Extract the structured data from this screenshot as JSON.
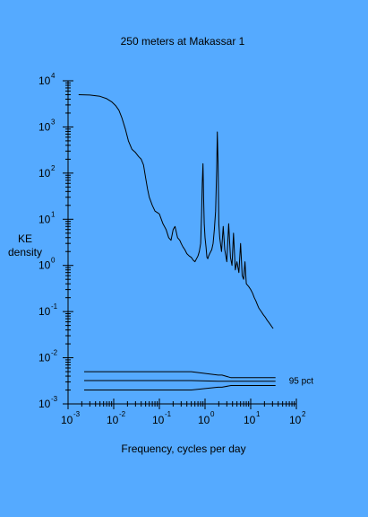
{
  "chart_data": {
    "type": "line",
    "title": "250 meters at Makassar 1",
    "xlabel": "Frequency, cycles per day",
    "ylabel": [
      "KE",
      "density"
    ],
    "x_scale": "log",
    "y_scale": "log",
    "xlim": [
      0.001,
      100
    ],
    "ylim": [
      0.001,
      10000
    ],
    "x_ticks": [
      {
        "base": "10",
        "exp": "-3",
        "value": 0.001
      },
      {
        "base": "10",
        "exp": "-2",
        "value": 0.01
      },
      {
        "base": "10",
        "exp": "-1",
        "value": 0.1
      },
      {
        "base": "10",
        "exp": "0",
        "value": 1
      },
      {
        "base": "10",
        "exp": "1",
        "value": 10
      },
      {
        "base": "10",
        "exp": "2",
        "value": 100
      }
    ],
    "y_ticks": [
      {
        "base": "10",
        "exp": "4",
        "value": 10000
      },
      {
        "base": "10",
        "exp": "3",
        "value": 1000
      },
      {
        "base": "10",
        "exp": "2",
        "value": 100
      },
      {
        "base": "10",
        "exp": "1",
        "value": 10
      },
      {
        "base": "10",
        "exp": "0",
        "value": 1
      },
      {
        "base": "10",
        "exp": "-1",
        "value": 0.1
      },
      {
        "base": "10",
        "exp": "-2",
        "value": 0.01
      },
      {
        "base": "10",
        "exp": "-3",
        "value": 0.001
      }
    ],
    "series": [
      {
        "x": [
          0.0017,
          0.003,
          0.005,
          0.007,
          0.009,
          0.011,
          0.013,
          0.015,
          0.018,
          0.021,
          0.025,
          0.03,
          0.035,
          0.04,
          0.045,
          0.05,
          0.055,
          0.06,
          0.07,
          0.08,
          0.09,
          0.1,
          0.12,
          0.14,
          0.16,
          0.18,
          0.2,
          0.22,
          0.25,
          0.28,
          0.3,
          0.33,
          0.36,
          0.4,
          0.45,
          0.5,
          0.55,
          0.6,
          0.65,
          0.7,
          0.75,
          0.8,
          0.84,
          0.87,
          0.9,
          0.93,
          0.96,
          1.0,
          1.05,
          1.1,
          1.15,
          1.2,
          1.3,
          1.4,
          1.5,
          1.6,
          1.7,
          1.8,
          1.86,
          1.93,
          2.0,
          2.1,
          2.3,
          2.5,
          2.7,
          3.0,
          3.3,
          3.6,
          3.9,
          4.2,
          4.6,
          5.0,
          5.5,
          6.0,
          6.5,
          7.0,
          7.5,
          8.0,
          9.0,
          10,
          11,
          12,
          13,
          14,
          15,
          17,
          19,
          21,
          23,
          25,
          27,
          29,
          31
        ],
        "y": [
          5000,
          4900,
          4600,
          4100,
          3500,
          2900,
          2300,
          1600,
          900,
          500,
          330,
          280,
          230,
          200,
          150,
          80,
          45,
          30,
          20,
          15,
          14,
          13,
          8,
          6,
          4,
          3.5,
          6,
          7,
          4,
          3.5,
          3,
          2.5,
          2.2,
          1.8,
          1.6,
          1.5,
          1.3,
          1.2,
          1.4,
          1.6,
          2,
          3,
          12,
          60,
          160,
          30,
          8,
          4,
          2.5,
          1.5,
          1.4,
          1.6,
          1.9,
          2.2,
          3,
          6,
          15,
          120,
          780,
          150,
          8,
          4,
          2,
          7,
          2.2,
          1.2,
          8,
          1.5,
          1.0,
          5,
          0.8,
          1.2,
          0.7,
          3,
          0.6,
          0.5,
          1.2,
          0.4,
          0.35,
          0.3,
          0.25,
          0.2,
          0.17,
          0.14,
          0.12,
          0.1,
          0.085,
          0.075,
          0.065,
          0.058,
          0.052,
          0.047,
          0.043
        ]
      }
    ],
    "confidence_band": {
      "label": "95 pct",
      "x_break": 0.5,
      "x_step": 1.5,
      "x_end": 35,
      "upper": [
        0.005,
        0.0042,
        0.0037
      ],
      "middle": [
        0.0032,
        0.0031,
        0.0031
      ],
      "lower": [
        0.002,
        0.0023,
        0.0025
      ]
    }
  }
}
